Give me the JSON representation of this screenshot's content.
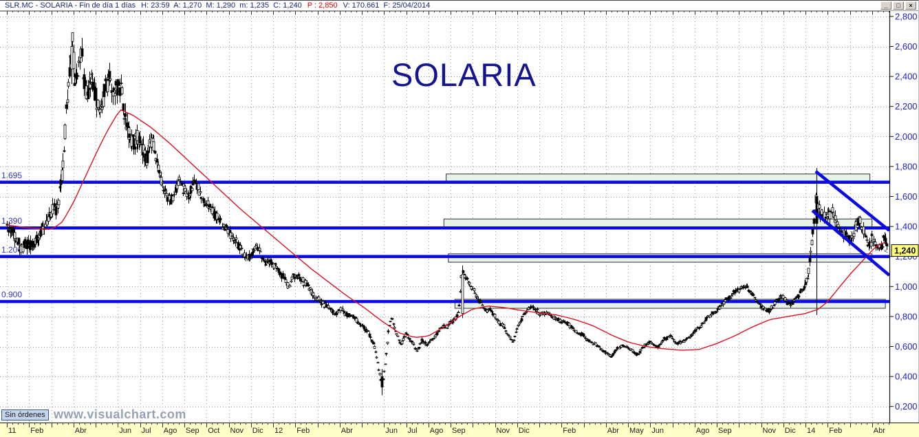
{
  "titlebar": {
    "instrument": "SLR.MC - SOLARIA - Fin de día 1 días",
    "ohlc": "H: 23:59  A: 1,270  M: 1,290  m: 1,235  C: 1,240",
    "period": "P : 2,850",
    "volume_date": "V: 170.661  F: 25/04/2014"
  },
  "window_buttons": {
    "minimize": "_",
    "maximize": "□",
    "close": "×"
  },
  "footer": {
    "status": "Sin órdenes",
    "watermark": "www.visualchart.com"
  },
  "chart_data": {
    "type": "candlestick",
    "title": "SOLARIA",
    "ylim": [
      0.2,
      2.8
    ],
    "y_step": 0.2,
    "y_tick_labels": [
      "0,200",
      "0,400",
      "0,600",
      "0,800",
      "1,000",
      "1,200",
      "1,400",
      "1,600",
      "1,800",
      "2,000",
      "2,200",
      "2,400",
      "2,600",
      "2,800"
    ],
    "x_tick_labels": [
      {
        "m": 0,
        "label": "11"
      },
      {
        "m": 1,
        "label": "Feb"
      },
      {
        "m": 3,
        "label": "Abr"
      },
      {
        "m": 5,
        "label": "Jun"
      },
      {
        "m": 6,
        "label": "Jul"
      },
      {
        "m": 7,
        "label": "Ago"
      },
      {
        "m": 8,
        "label": "Sep"
      },
      {
        "m": 9,
        "label": "Oct"
      },
      {
        "m": 10,
        "label": "Nov"
      },
      {
        "m": 11,
        "label": "Dic"
      },
      {
        "m": 12,
        "label": "12"
      },
      {
        "m": 13,
        "label": "Feb"
      },
      {
        "m": 15,
        "label": "Abr"
      },
      {
        "m": 17,
        "label": "Jun"
      },
      {
        "m": 18,
        "label": "Jul"
      },
      {
        "m": 19,
        "label": "Ago"
      },
      {
        "m": 20,
        "label": "Sep"
      },
      {
        "m": 22,
        "label": "Nov"
      },
      {
        "m": 23,
        "label": "Dic"
      },
      {
        "m": 25,
        "label": "Feb"
      },
      {
        "m": 27,
        "label": "Abr"
      },
      {
        "m": 28,
        "label": "May"
      },
      {
        "m": 29,
        "label": "Jun"
      },
      {
        "m": 31,
        "label": "Ago"
      },
      {
        "m": 32,
        "label": "Sep"
      },
      {
        "m": 34,
        "label": "Nov"
      },
      {
        "m": 35,
        "label": "Dic"
      },
      {
        "m": 36,
        "label": "14"
      },
      {
        "m": 37,
        "label": "Feb"
      },
      {
        "m": 39,
        "label": "Abr"
      }
    ],
    "levels": [
      {
        "value": 1.695,
        "label": "1.695"
      },
      {
        "value": 1.39,
        "label": "1.390"
      },
      {
        "value": 1.2,
        "label": "1.200"
      },
      {
        "value": 0.9,
        "label": "0.900"
      }
    ],
    "level_boxes": [
      [
        19.8,
        38.9,
        1.75,
        1.7
      ],
      [
        19.7,
        39.0,
        1.45,
        1.395
      ],
      [
        19.9,
        39.0,
        1.218,
        1.162
      ],
      [
        20.2,
        39.6,
        0.915,
        0.855
      ]
    ],
    "trendlines": [
      [
        36.46,
        1.768,
        39.78,
        1.373
      ],
      [
        36.31,
        1.506,
        39.78,
        1.075
      ]
    ],
    "price_tag": {
      "label": "1,240",
      "value": 1.24
    },
    "series": {
      "price_anchors": [
        [
          0,
          1.42
        ],
        [
          0.4,
          1.35
        ],
        [
          0.8,
          1.3
        ],
        [
          1.2,
          1.24
        ],
        [
          1.6,
          1.35
        ],
        [
          2,
          1.44
        ],
        [
          2.3,
          1.52
        ],
        [
          2.5,
          1.75
        ],
        [
          2.7,
          2.2
        ],
        [
          2.85,
          2.5
        ],
        [
          2.95,
          2.62
        ],
        [
          3.05,
          2.35
        ],
        [
          3.2,
          2.42
        ],
        [
          3.35,
          2.55
        ],
        [
          3.5,
          2.35
        ],
        [
          3.65,
          2.25
        ],
        [
          3.8,
          2.38
        ],
        [
          4,
          2.3
        ],
        [
          4.2,
          2.2
        ],
        [
          4.4,
          2.35
        ],
        [
          4.6,
          2.42
        ],
        [
          4.8,
          2.28
        ],
        [
          5,
          2.35
        ],
        [
          5.15,
          2.28
        ],
        [
          5.3,
          2.12
        ],
        [
          5.5,
          2.02
        ],
        [
          5.7,
          1.95
        ],
        [
          5.9,
          2.05
        ],
        [
          6.1,
          1.98
        ],
        [
          6.3,
          1.9
        ],
        [
          6.5,
          1.98
        ],
        [
          6.7,
          1.92
        ],
        [
          6.85,
          1.78
        ],
        [
          7,
          1.65
        ],
        [
          7.2,
          1.6
        ],
        [
          7.4,
          1.55
        ],
        [
          7.6,
          1.62
        ],
        [
          7.8,
          1.7
        ],
        [
          8,
          1.63
        ],
        [
          8.2,
          1.58
        ],
        [
          8.5,
          1.68
        ],
        [
          8.8,
          1.55
        ],
        [
          9.1,
          1.5
        ],
        [
          9.4,
          1.44
        ],
        [
          9.7,
          1.38
        ],
        [
          10,
          1.36
        ],
        [
          10.3,
          1.3
        ],
        [
          10.6,
          1.25
        ],
        [
          10.9,
          1.2
        ],
        [
          11.2,
          1.26
        ],
        [
          11.5,
          1.2
        ],
        [
          11.8,
          1.16
        ],
        [
          12.1,
          1.12
        ],
        [
          12.4,
          1.05
        ],
        [
          12.7,
          1.02
        ],
        [
          13,
          1.08
        ],
        [
          13.3,
          1.05
        ],
        [
          13.6,
          0.98
        ],
        [
          13.9,
          0.94
        ],
        [
          14.2,
          0.9
        ],
        [
          14.5,
          0.86
        ],
        [
          14.8,
          0.83
        ],
        [
          15.1,
          0.87
        ],
        [
          15.4,
          0.83
        ],
        [
          15.7,
          0.78
        ],
        [
          16,
          0.73
        ],
        [
          16.3,
          0.68
        ],
        [
          16.55,
          0.6
        ],
        [
          16.75,
          0.45
        ],
        [
          16.9,
          0.33
        ],
        [
          17.05,
          0.48
        ],
        [
          17.2,
          0.72
        ],
        [
          17.35,
          0.8
        ],
        [
          17.55,
          0.68
        ],
        [
          17.75,
          0.62
        ],
        [
          18,
          0.7
        ],
        [
          18.2,
          0.63
        ],
        [
          18.45,
          0.58
        ],
        [
          18.7,
          0.64
        ],
        [
          18.95,
          0.62
        ],
        [
          19.2,
          0.66
        ],
        [
          19.5,
          0.7
        ],
        [
          19.8,
          0.73
        ],
        [
          20.1,
          0.76
        ],
        [
          20.35,
          0.82
        ],
        [
          20.5,
          1.1
        ],
        [
          20.65,
          1.05
        ],
        [
          20.9,
          1
        ],
        [
          21.2,
          0.93
        ],
        [
          21.5,
          0.88
        ],
        [
          21.8,
          0.85
        ],
        [
          22.1,
          0.8
        ],
        [
          22.4,
          0.75
        ],
        [
          22.6,
          0.68
        ],
        [
          22.8,
          0.63
        ],
        [
          23,
          0.72
        ],
        [
          23.3,
          0.82
        ],
        [
          23.6,
          0.88
        ],
        [
          23.9,
          0.85
        ],
        [
          24.2,
          0.82
        ],
        [
          24.5,
          0.84
        ],
        [
          24.8,
          0.79
        ],
        [
          25.1,
          0.77
        ],
        [
          25.4,
          0.72
        ],
        [
          25.7,
          0.68
        ],
        [
          26,
          0.66
        ],
        [
          26.3,
          0.62
        ],
        [
          26.6,
          0.59
        ],
        [
          26.9,
          0.56
        ],
        [
          27.2,
          0.53
        ],
        [
          27.5,
          0.57
        ],
        [
          27.8,
          0.61
        ],
        [
          28.1,
          0.58
        ],
        [
          28.4,
          0.55
        ],
        [
          28.7,
          0.6
        ],
        [
          29,
          0.62
        ],
        [
          29.3,
          0.58
        ],
        [
          29.6,
          0.64
        ],
        [
          29.9,
          0.66
        ],
        [
          30.2,
          0.61
        ],
        [
          30.5,
          0.63
        ],
        [
          30.8,
          0.68
        ],
        [
          31.1,
          0.72
        ],
        [
          31.4,
          0.76
        ],
        [
          31.7,
          0.8
        ],
        [
          32,
          0.84
        ],
        [
          32.3,
          0.88
        ],
        [
          32.6,
          0.93
        ],
        [
          32.9,
          0.97
        ],
        [
          33.2,
          1
        ],
        [
          33.5,
          0.96
        ],
        [
          33.8,
          0.9
        ],
        [
          34.1,
          0.86
        ],
        [
          34.4,
          0.84
        ],
        [
          34.7,
          0.9
        ],
        [
          35,
          0.93
        ],
        [
          35.3,
          0.88
        ],
        [
          35.6,
          0.93
        ],
        [
          35.9,
          0.97
        ],
        [
          36.1,
          1.06
        ],
        [
          36.3,
          1.32
        ],
        [
          36.45,
          1.58
        ],
        [
          36.6,
          1.52
        ],
        [
          36.8,
          1.45
        ],
        [
          37,
          1.5
        ],
        [
          37.2,
          1.53
        ],
        [
          37.4,
          1.47
        ],
        [
          37.6,
          1.42
        ],
        [
          37.8,
          1.38
        ],
        [
          38,
          1.33
        ],
        [
          38.2,
          1.38
        ],
        [
          38.4,
          1.43
        ],
        [
          38.6,
          1.36
        ],
        [
          38.8,
          1.3
        ],
        [
          39,
          1.37
        ],
        [
          39.2,
          1.32
        ],
        [
          39.4,
          1.28
        ],
        [
          39.55,
          1.31
        ],
        [
          39.7,
          1.24
        ]
      ],
      "ma_anchors": [
        [
          0,
          1.41
        ],
        [
          1,
          1.39
        ],
        [
          2,
          1.38
        ],
        [
          2.5,
          1.43
        ],
        [
          3,
          1.56
        ],
        [
          3.5,
          1.72
        ],
        [
          4,
          1.88
        ],
        [
          4.5,
          2.03
        ],
        [
          5.1,
          2.18
        ],
        [
          5.7,
          2.14
        ],
        [
          6.5,
          2.06
        ],
        [
          7.3,
          1.96
        ],
        [
          8.1,
          1.85
        ],
        [
          8.9,
          1.74
        ],
        [
          9.7,
          1.63
        ],
        [
          10.5,
          1.52
        ],
        [
          11.3,
          1.42
        ],
        [
          12.1,
          1.32
        ],
        [
          12.9,
          1.22
        ],
        [
          13.7,
          1.12
        ],
        [
          14.5,
          1.03
        ],
        [
          15.3,
          0.94
        ],
        [
          16.1,
          0.86
        ],
        [
          16.9,
          0.77
        ],
        [
          17.7,
          0.69
        ],
        [
          18.4,
          0.66
        ],
        [
          19,
          0.67
        ],
        [
          19.7,
          0.73
        ],
        [
          20.4,
          0.8
        ],
        [
          21,
          0.85
        ],
        [
          21.7,
          0.87
        ],
        [
          22.4,
          0.86
        ],
        [
          23.2,
          0.84
        ],
        [
          24,
          0.825
        ],
        [
          24.8,
          0.81
        ],
        [
          25.6,
          0.78
        ],
        [
          26.4,
          0.74
        ],
        [
          27.2,
          0.68
        ],
        [
          28,
          0.63
        ],
        [
          28.8,
          0.6
        ],
        [
          29.6,
          0.585
        ],
        [
          30.4,
          0.575
        ],
        [
          31.2,
          0.58
        ],
        [
          32,
          0.62
        ],
        [
          32.8,
          0.67
        ],
        [
          33.6,
          0.73
        ],
        [
          34.4,
          0.78
        ],
        [
          35.2,
          0.8
        ],
        [
          36,
          0.82
        ],
        [
          36.6,
          0.85
        ],
        [
          37,
          0.9
        ],
        [
          37.5,
          0.99
        ],
        [
          38,
          1.08
        ],
        [
          38.5,
          1.16
        ],
        [
          39,
          1.24
        ],
        [
          39.3,
          1.28
        ],
        [
          39.7,
          1.3
        ]
      ],
      "special_candles": [
        [
          2.9,
          2.45,
          2.69,
          2.35,
          2.6
        ],
        [
          16.9,
          0.4,
          0.45,
          0.275,
          0.33
        ],
        [
          20.5,
          0.82,
          1.14,
          0.79,
          1.08
        ],
        [
          36.52,
          1.6,
          1.79,
          0.81,
          1.42
        ]
      ]
    },
    "colors": {
      "candle": "#000000",
      "ma": "#e01022",
      "level_line": "#0a0ae6",
      "trendline": "#0a0ae6",
      "grid": "#9a9a9a",
      "axis_label": "#2020c8",
      "level_label": "#3535d4",
      "tag_bg": "#ffff7d",
      "box_fill": "#e6f3e6",
      "title": "#14148e"
    }
  }
}
